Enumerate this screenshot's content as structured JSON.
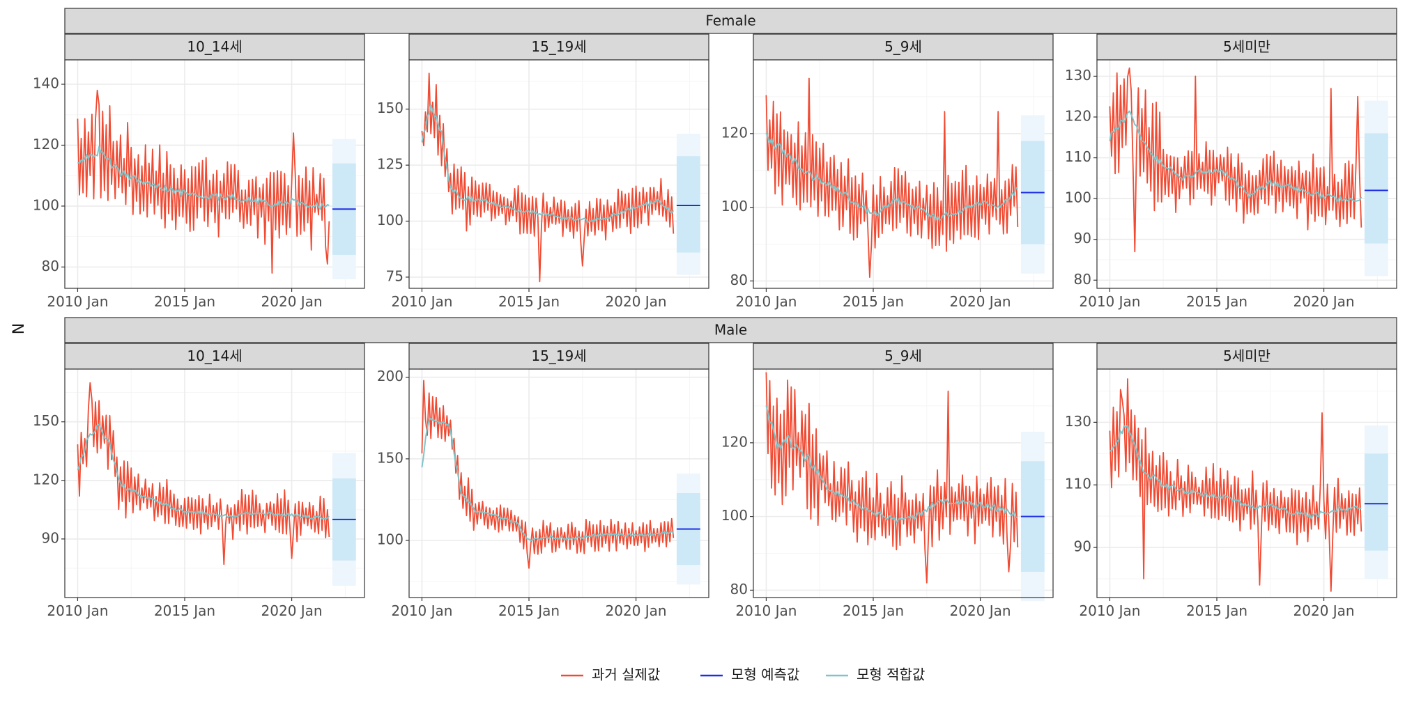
{
  "colors": {
    "actual": "#f04a32",
    "forecast": "#1f2ee6",
    "fitted": "#7fc4c8",
    "ci80": "#cde8f6",
    "ci95": "#ecf6fc",
    "strip_fill": "#d9d9d9",
    "grid_major": "#ebebeb",
    "grid_minor": "#f5f5f5"
  },
  "chart_data": {
    "type": "line",
    "ylabel": "N",
    "xlabel": "",
    "x_tick_labels": [
      "2010 Jan",
      "2015 Jan",
      "2020 Jan"
    ],
    "x_tick_years": [
      2010,
      2015,
      2020
    ],
    "xlim": [
      2009.4,
      2023.4
    ],
    "history_start": 2010.0,
    "history_end": 2021.75,
    "forecast_start": 2021.9,
    "forecast_end": 2023.0,
    "legend": [
      {
        "key": "actual",
        "label": "과거 실제값"
      },
      {
        "key": "forecast",
        "label": "모형 예측값"
      },
      {
        "key": "fitted",
        "label": "모형 적합값"
      }
    ],
    "legend_position": "bottom",
    "facets": [
      {
        "sex": "Female",
        "group": "10_14세",
        "ylim": [
          73,
          148
        ],
        "yticks": [
          80,
          100,
          120,
          140
        ],
        "fit_knots": [
          [
            2010,
            114
          ],
          [
            2011,
            118
          ],
          [
            2012,
            111
          ],
          [
            2013,
            108
          ],
          [
            2014,
            106
          ],
          [
            2015,
            104
          ],
          [
            2016,
            103
          ],
          [
            2017,
            103
          ],
          [
            2018,
            102
          ],
          [
            2019,
            101
          ],
          [
            2020,
            101.5
          ],
          [
            2021,
            100.5
          ],
          [
            2021.75,
            99.5
          ]
        ],
        "amp": [
          9,
          12
        ],
        "spikes": [
          [
            2010.9,
            138
          ],
          [
            2019.1,
            78
          ],
          [
            2020.1,
            124
          ],
          [
            2021.7,
            81
          ]
        ],
        "forecast": 99,
        "pi80": [
          84,
          114
        ],
        "pi95": [
          76,
          122
        ]
      },
      {
        "sex": "Female",
        "group": "15_19세",
        "ylim": [
          70,
          172
        ],
        "yticks": [
          75,
          100,
          125,
          150
        ],
        "fit_knots": [
          [
            2010,
            135
          ],
          [
            2010.4,
            152
          ],
          [
            2010.9,
            140
          ],
          [
            2011.3,
            115
          ],
          [
            2012,
            110
          ],
          [
            2013,
            109
          ],
          [
            2014,
            106
          ],
          [
            2015,
            104
          ],
          [
            2016,
            103
          ],
          [
            2017,
            101
          ],
          [
            2018,
            100
          ],
          [
            2019,
            103
          ],
          [
            2020,
            106
          ],
          [
            2021,
            109
          ],
          [
            2021.75,
            104
          ]
        ],
        "amp": [
          7,
          10
        ],
        "spikes": [
          [
            2010.3,
            166
          ],
          [
            2015.5,
            73
          ],
          [
            2017.5,
            80
          ]
        ],
        "forecast": 107,
        "pi80": [
          86,
          129
        ],
        "pi95": [
          76,
          139
        ]
      },
      {
        "sex": "Female",
        "group": "5_9세",
        "ylim": [
          78,
          140
        ],
        "yticks": [
          80,
          100,
          120
        ],
        "fit_knots": [
          [
            2010,
            119
          ],
          [
            2011,
            114
          ],
          [
            2012,
            109
          ],
          [
            2013,
            106
          ],
          [
            2014,
            102
          ],
          [
            2015,
            98
          ],
          [
            2016,
            102
          ],
          [
            2017,
            100
          ],
          [
            2018,
            97
          ],
          [
            2019,
            99
          ],
          [
            2020,
            101
          ],
          [
            2021,
            100
          ],
          [
            2021.75,
            105
          ]
        ],
        "amp": [
          7,
          10
        ],
        "spikes": [
          [
            2012.0,
            135
          ],
          [
            2014.8,
            81
          ],
          [
            2018.3,
            126
          ],
          [
            2020.8,
            126
          ]
        ],
        "forecast": 104,
        "pi80": [
          90,
          118
        ],
        "pi95": [
          82,
          125
        ]
      },
      {
        "sex": "Female",
        "group": "5세미만",
        "ylim": [
          78,
          134
        ],
        "yticks": [
          80,
          90,
          100,
          110,
          120,
          130
        ],
        "fit_knots": [
          [
            2010,
            115
          ],
          [
            2010.9,
            121
          ],
          [
            2011.5,
            114
          ],
          [
            2012.5,
            108
          ],
          [
            2013.5,
            105
          ],
          [
            2014.5,
            107
          ],
          [
            2015.5,
            106
          ],
          [
            2016.5,
            101
          ],
          [
            2017.5,
            104
          ],
          [
            2018.5,
            103
          ],
          [
            2019.5,
            101
          ],
          [
            2020.5,
            100
          ],
          [
            2021.75,
            100
          ]
        ],
        "amp": [
          6,
          9
        ],
        "spikes": [
          [
            2010.9,
            132
          ],
          [
            2014.0,
            130
          ],
          [
            2020.3,
            127
          ],
          [
            2021.6,
            125
          ],
          [
            2011.2,
            87
          ]
        ],
        "forecast": 102,
        "pi80": [
          89,
          116
        ],
        "pi95": [
          81,
          124
        ]
      },
      {
        "sex": "Male",
        "group": "10_14세",
        "ylim": [
          60,
          177
        ],
        "yticks": [
          90,
          120,
          150
        ],
        "fit_knots": [
          [
            2010,
            126
          ],
          [
            2010.5,
            142
          ],
          [
            2011,
            148
          ],
          [
            2011.5,
            138
          ],
          [
            2012,
            118
          ],
          [
            2013,
            112
          ],
          [
            2014,
            108
          ],
          [
            2015,
            104
          ],
          [
            2016,
            103
          ],
          [
            2017,
            102
          ],
          [
            2018,
            103
          ],
          [
            2019,
            103
          ],
          [
            2020,
            102
          ],
          [
            2021,
            101
          ],
          [
            2021.75,
            101
          ]
        ],
        "amp": [
          8,
          11
        ],
        "spikes": [
          [
            2010.6,
            170
          ],
          [
            2016.8,
            77
          ],
          [
            2020.0,
            80
          ]
        ],
        "forecast": 100,
        "pi80": [
          79,
          121
        ],
        "pi95": [
          66,
          134
        ]
      },
      {
        "sex": "Male",
        "group": "15_19세",
        "ylim": [
          65,
          205
        ],
        "yticks": [
          100,
          150,
          200
        ],
        "fit_knots": [
          [
            2010,
            145
          ],
          [
            2010.3,
            175
          ],
          [
            2010.8,
            172
          ],
          [
            2011.3,
            170
          ],
          [
            2011.8,
            130
          ],
          [
            2012.5,
            118
          ],
          [
            2013.5,
            115
          ],
          [
            2014.5,
            110
          ],
          [
            2015,
            100
          ],
          [
            2016,
            102
          ],
          [
            2017,
            101
          ],
          [
            2018,
            103
          ],
          [
            2019,
            104
          ],
          [
            2020,
            103
          ],
          [
            2021,
            104
          ],
          [
            2021.75,
            105
          ]
        ],
        "amp": [
          7,
          10
        ],
        "spikes": [
          [
            2010.1,
            198
          ],
          [
            2015.0,
            83
          ]
        ],
        "forecast": 107,
        "pi80": [
          85,
          129
        ],
        "pi95": [
          73,
          141
        ]
      },
      {
        "sex": "Male",
        "group": "5_9세",
        "ylim": [
          78,
          140
        ],
        "yticks": [
          80,
          100,
          120
        ],
        "fit_knots": [
          [
            2010,
            131
          ],
          [
            2010.5,
            118
          ],
          [
            2011,
            121
          ],
          [
            2012,
            115
          ],
          [
            2013,
            107
          ],
          [
            2014,
            104
          ],
          [
            2015,
            101
          ],
          [
            2016,
            99
          ],
          [
            2017,
            100
          ],
          [
            2018,
            104
          ],
          [
            2019,
            104
          ],
          [
            2020,
            103
          ],
          [
            2021,
            102
          ],
          [
            2021.75,
            100
          ]
        ],
        "amp": [
          7,
          11
        ],
        "spikes": [
          [
            2011.0,
            137
          ],
          [
            2018.5,
            134
          ],
          [
            2017.5,
            82
          ],
          [
            2021.3,
            85
          ]
        ],
        "forecast": 100,
        "pi80": [
          85,
          115
        ],
        "pi95": [
          77,
          123
        ]
      },
      {
        "sex": "Male",
        "group": "5세미만",
        "ylim": [
          74,
          147
        ],
        "yticks": [
          90,
          110,
          130
        ],
        "fit_knots": [
          [
            2010,
            120
          ],
          [
            2010.8,
            130
          ],
          [
            2011.5,
            115
          ],
          [
            2012.5,
            110
          ],
          [
            2013.5,
            108
          ],
          [
            2014.5,
            107
          ],
          [
            2015.5,
            106
          ],
          [
            2016.5,
            103
          ],
          [
            2017.5,
            104
          ],
          [
            2018.5,
            101
          ],
          [
            2019.5,
            100
          ],
          [
            2020.5,
            102
          ],
          [
            2021.75,
            103
          ]
        ],
        "amp": [
          7,
          10
        ],
        "spikes": [
          [
            2010.6,
            137
          ],
          [
            2019.9,
            133
          ],
          [
            2020.3,
            76
          ],
          [
            2011.6,
            80
          ],
          [
            2017.0,
            78
          ]
        ],
        "forecast": 104,
        "pi80": [
          89,
          120
        ],
        "pi95": [
          80,
          129
        ]
      }
    ]
  }
}
